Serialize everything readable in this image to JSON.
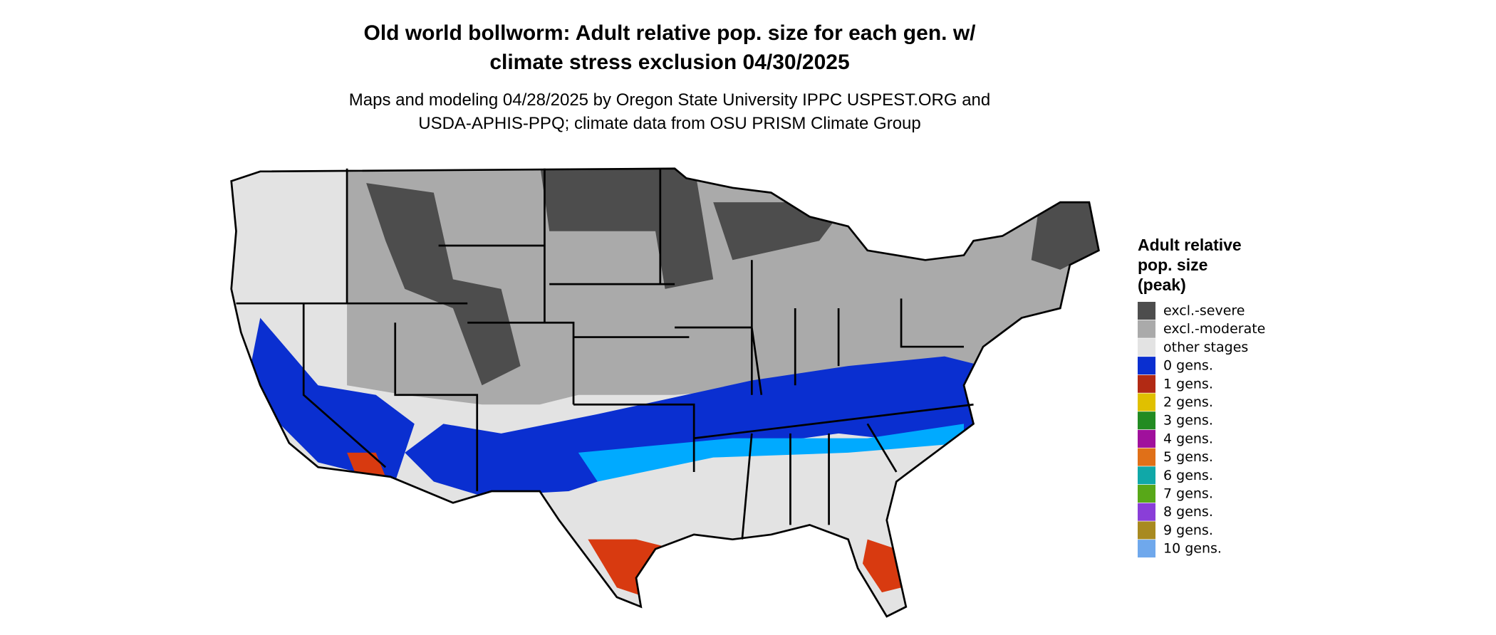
{
  "title": [
    "Old world bollworm: Adult relative pop. size for each gen. w/",
    "climate stress exclusion 04/30/2025"
  ],
  "subtitle": [
    "Maps and modeling 04/28/2025 by Oregon State University IPPC USPEST.ORG and",
    "USDA-APHIS-PPQ; climate data from OSU PRISM Climate Group"
  ],
  "legend": {
    "title": [
      "Adult relative",
      "pop. size",
      "(peak)"
    ],
    "items": [
      {
        "label": "excl.-severe",
        "color": "#4d4d4d"
      },
      {
        "label": "excl.-moderate",
        "color": "#aaaaaa"
      },
      {
        "label": "other stages",
        "color": "#e3e3e3"
      },
      {
        "label": "0 gens.",
        "color": "#0a2fd0"
      },
      {
        "label": "1 gens.",
        "color": "#b22a14"
      },
      {
        "label": "2 gens.",
        "color": "#e0c000"
      },
      {
        "label": "3 gens.",
        "color": "#228b22"
      },
      {
        "label": "4 gens.",
        "color": "#a0109c"
      },
      {
        "label": "5 gens.",
        "color": "#e07018"
      },
      {
        "label": "6 gens.",
        "color": "#10a8a8"
      },
      {
        "label": "7 gens.",
        "color": "#58a818"
      },
      {
        "label": "8 gens.",
        "color": "#8a3ed8"
      },
      {
        "label": "9 gens.",
        "color": "#a88a20"
      },
      {
        "label": "10 gens.",
        "color": "#6fa8ec"
      }
    ]
  }
}
